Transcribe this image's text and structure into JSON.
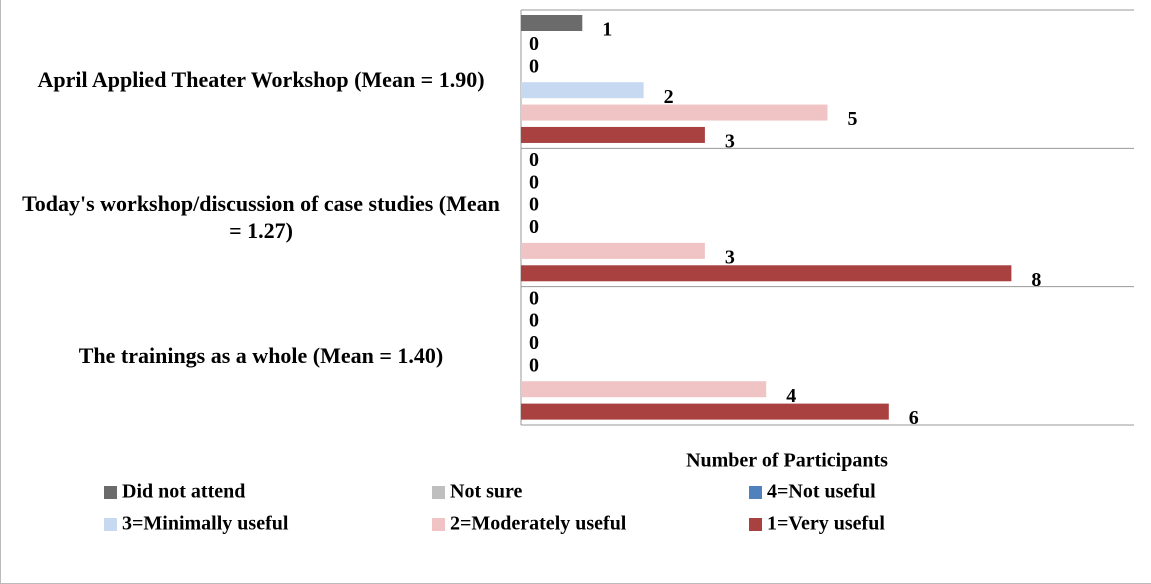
{
  "chart_data": {
    "type": "bar",
    "orientation": "horizontal",
    "categories": [
      "April Applied Theater Workshop (Mean = 1.90)",
      "Today's workshop/discussion of case studies (Mean  = 1.27)",
      "The trainings as a whole (Mean  = 1.40)"
    ],
    "xlabel": "Number of Participants",
    "xlim": [
      0,
      10
    ],
    "series": [
      {
        "name": "Did not attend",
        "color": "#6b6b6b",
        "values": [
          1,
          0,
          0
        ]
      },
      {
        "name": "Not sure",
        "color": "#bfbfbf",
        "values": [
          0,
          0,
          0
        ]
      },
      {
        "name": "4=Not useful",
        "color": "#4f81bd",
        "values": [
          0,
          0,
          0
        ]
      },
      {
        "name": "3=Minimally useful",
        "color": "#c6d9f1",
        "values": [
          2,
          0,
          0
        ]
      },
      {
        "name": "2=Moderately useful",
        "color": "#f0c4c4",
        "values": [
          5,
          3,
          4
        ]
      },
      {
        "name": "1=Very useful",
        "color": "#a8413f",
        "values": [
          3,
          8,
          6
        ]
      }
    ],
    "legend": "bottom"
  }
}
